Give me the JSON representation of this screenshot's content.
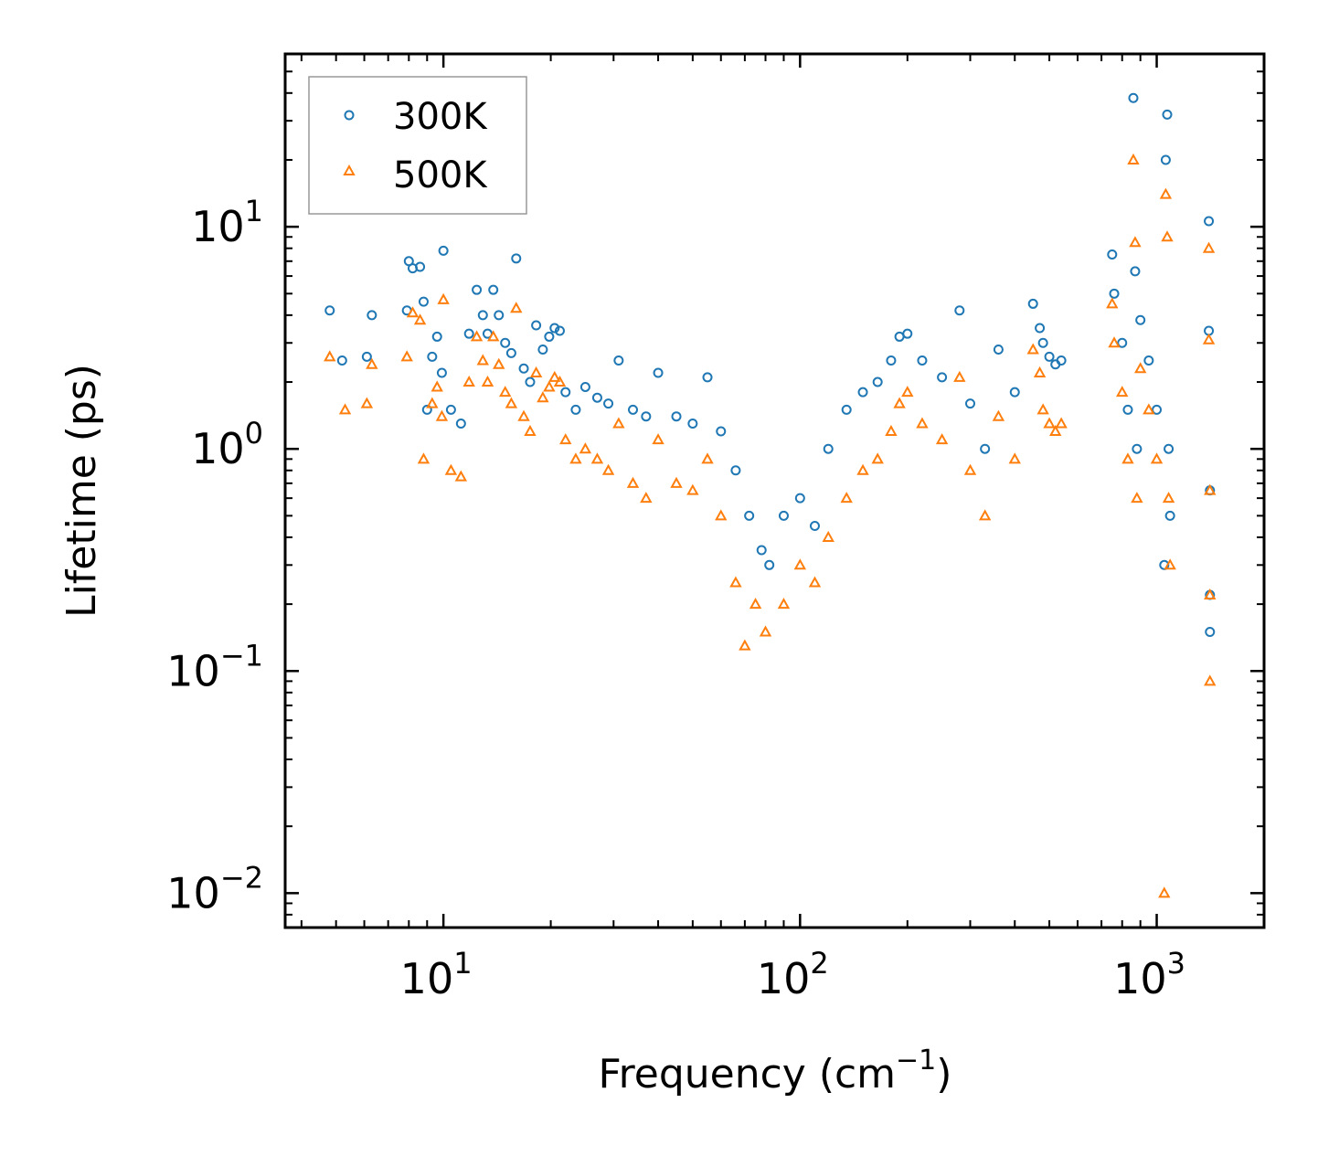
{
  "chart_data": {
    "type": "scatter",
    "title": "",
    "xlabel_base": "Frequency (cm",
    "xlabel_exp": "−1",
    "xlabel_end": ")",
    "ylabel": "Lifetime (ps)",
    "xscale": "log",
    "yscale": "log",
    "xlim": [
      3.6,
      2000
    ],
    "ylim": [
      0.007,
      60
    ],
    "x_ticks": [
      {
        "value": 10,
        "base": "10",
        "exp": "1"
      },
      {
        "value": 100,
        "base": "10",
        "exp": "2"
      },
      {
        "value": 1000,
        "base": "10",
        "exp": "3"
      }
    ],
    "y_ticks": [
      {
        "value": 0.01,
        "base": "10",
        "exp": "−2"
      },
      {
        "value": 0.1,
        "base": "10",
        "exp": "−1"
      },
      {
        "value": 1,
        "base": "10",
        "exp": "0"
      },
      {
        "value": 10,
        "base": "10",
        "exp": "1"
      }
    ],
    "legend_position": "top-left",
    "series": [
      {
        "name": "300K",
        "marker": "circle",
        "color": "#1f77b4",
        "points": [
          [
            4.8,
            4.2
          ],
          [
            5.2,
            2.5
          ],
          [
            6.1,
            2.6
          ],
          [
            6.3,
            4.0
          ],
          [
            7.9,
            4.2
          ],
          [
            8.0,
            7.0
          ],
          [
            8.2,
            6.5
          ],
          [
            8.6,
            6.6
          ],
          [
            8.8,
            4.6
          ],
          [
            9.0,
            1.5
          ],
          [
            9.3,
            2.6
          ],
          [
            9.6,
            3.2
          ],
          [
            9.9,
            2.2
          ],
          [
            10.0,
            7.8
          ],
          [
            10.5,
            1.5
          ],
          [
            11.2,
            1.3
          ],
          [
            11.8,
            3.3
          ],
          [
            12.4,
            5.2
          ],
          [
            12.9,
            4.0
          ],
          [
            13.3,
            3.3
          ],
          [
            13.8,
            5.2
          ],
          [
            14.3,
            4.0
          ],
          [
            14.9,
            3.0
          ],
          [
            15.5,
            2.7
          ],
          [
            16.0,
            7.2
          ],
          [
            16.8,
            2.3
          ],
          [
            17.5,
            2.0
          ],
          [
            18.2,
            3.6
          ],
          [
            19.0,
            2.8
          ],
          [
            19.8,
            3.2
          ],
          [
            20.5,
            3.5
          ],
          [
            21.2,
            3.4
          ],
          [
            22.0,
            1.8
          ],
          [
            23.5,
            1.5
          ],
          [
            25.0,
            1.9
          ],
          [
            27.0,
            1.7
          ],
          [
            29.0,
            1.6
          ],
          [
            31.0,
            2.5
          ],
          [
            34.0,
            1.5
          ],
          [
            37.0,
            1.4
          ],
          [
            40.0,
            2.2
          ],
          [
            45.0,
            1.4
          ],
          [
            50.0,
            1.3
          ],
          [
            55.0,
            2.1
          ],
          [
            60.0,
            1.2
          ],
          [
            66.0,
            0.8
          ],
          [
            72.0,
            0.5
          ],
          [
            78.0,
            0.35
          ],
          [
            82.0,
            0.3
          ],
          [
            90.0,
            0.5
          ],
          [
            100.0,
            0.6
          ],
          [
            110.0,
            0.45
          ],
          [
            120.0,
            1.0
          ],
          [
            135.0,
            1.5
          ],
          [
            150.0,
            1.8
          ],
          [
            165.0,
            2.0
          ],
          [
            180.0,
            2.5
          ],
          [
            190.0,
            3.2
          ],
          [
            200.0,
            3.3
          ],
          [
            220.0,
            2.5
          ],
          [
            250.0,
            2.1
          ],
          [
            280.0,
            4.2
          ],
          [
            300.0,
            1.6
          ],
          [
            330.0,
            1.0
          ],
          [
            360.0,
            2.8
          ],
          [
            400.0,
            1.8
          ],
          [
            450.0,
            4.5
          ],
          [
            470.0,
            3.5
          ],
          [
            480.0,
            3.0
          ],
          [
            500.0,
            2.6
          ],
          [
            520.0,
            2.4
          ],
          [
            540.0,
            2.5
          ],
          [
            750.0,
            7.5
          ],
          [
            760.0,
            5.0
          ],
          [
            800.0,
            3.0
          ],
          [
            830.0,
            1.5
          ],
          [
            860.0,
            38.0
          ],
          [
            870.0,
            6.3
          ],
          [
            880.0,
            1.0
          ],
          [
            900.0,
            3.8
          ],
          [
            950.0,
            2.5
          ],
          [
            1000.0,
            1.5
          ],
          [
            1050.0,
            0.3
          ],
          [
            1060.0,
            20.0
          ],
          [
            1070.0,
            32.0
          ],
          [
            1080.0,
            1.0
          ],
          [
            1090.0,
            0.5
          ],
          [
            1400.0,
            10.6
          ],
          [
            1400.0,
            3.4
          ],
          [
            1410.0,
            0.65
          ],
          [
            1410.0,
            0.22
          ],
          [
            1410.0,
            0.15
          ]
        ]
      },
      {
        "name": "500K",
        "marker": "triangle",
        "color": "#ff7f0e",
        "points": [
          [
            4.8,
            2.6
          ],
          [
            5.3,
            1.5
          ],
          [
            6.1,
            1.6
          ],
          [
            6.3,
            2.4
          ],
          [
            7.9,
            2.6
          ],
          [
            8.2,
            4.1
          ],
          [
            8.6,
            3.8
          ],
          [
            8.8,
            0.9
          ],
          [
            9.3,
            1.6
          ],
          [
            9.6,
            1.9
          ],
          [
            9.9,
            1.4
          ],
          [
            10.0,
            4.7
          ],
          [
            10.5,
            0.8
          ],
          [
            11.2,
            0.75
          ],
          [
            11.8,
            2.0
          ],
          [
            12.4,
            3.2
          ],
          [
            12.9,
            2.5
          ],
          [
            13.3,
            2.0
          ],
          [
            13.8,
            3.2
          ],
          [
            14.3,
            2.4
          ],
          [
            14.9,
            1.8
          ],
          [
            15.5,
            1.6
          ],
          [
            16.0,
            4.3
          ],
          [
            16.8,
            1.4
          ],
          [
            17.5,
            1.2
          ],
          [
            18.2,
            2.2
          ],
          [
            19.0,
            1.7
          ],
          [
            19.8,
            1.9
          ],
          [
            20.5,
            2.1
          ],
          [
            21.2,
            2.0
          ],
          [
            22.0,
            1.1
          ],
          [
            23.5,
            0.9
          ],
          [
            25.0,
            1.0
          ],
          [
            27.0,
            0.9
          ],
          [
            29.0,
            0.8
          ],
          [
            31.0,
            1.3
          ],
          [
            34.0,
            0.7
          ],
          [
            37.0,
            0.6
          ],
          [
            40.0,
            1.1
          ],
          [
            45.0,
            0.7
          ],
          [
            50.0,
            0.65
          ],
          [
            55.0,
            0.9
          ],
          [
            60.0,
            0.5
          ],
          [
            66.0,
            0.25
          ],
          [
            70.0,
            0.13
          ],
          [
            75.0,
            0.2
          ],
          [
            80.0,
            0.15
          ],
          [
            90.0,
            0.2
          ],
          [
            100.0,
            0.3
          ],
          [
            110.0,
            0.25
          ],
          [
            120.0,
            0.4
          ],
          [
            135.0,
            0.6
          ],
          [
            150.0,
            0.8
          ],
          [
            165.0,
            0.9
          ],
          [
            180.0,
            1.2
          ],
          [
            190.0,
            1.6
          ],
          [
            200.0,
            1.8
          ],
          [
            220.0,
            1.3
          ],
          [
            250.0,
            1.1
          ],
          [
            280.0,
            2.1
          ],
          [
            300.0,
            0.8
          ],
          [
            330.0,
            0.5
          ],
          [
            360.0,
            1.4
          ],
          [
            400.0,
            0.9
          ],
          [
            450.0,
            2.8
          ],
          [
            470.0,
            2.2
          ],
          [
            480.0,
            1.5
          ],
          [
            500.0,
            1.3
          ],
          [
            520.0,
            1.2
          ],
          [
            540.0,
            1.3
          ],
          [
            750.0,
            4.5
          ],
          [
            760.0,
            3.0
          ],
          [
            800.0,
            1.8
          ],
          [
            830.0,
            0.9
          ],
          [
            860.0,
            20.0
          ],
          [
            870.0,
            8.5
          ],
          [
            880.0,
            0.6
          ],
          [
            900.0,
            2.3
          ],
          [
            950.0,
            1.5
          ],
          [
            1000.0,
            0.9
          ],
          [
            1050.0,
            0.01
          ],
          [
            1060.0,
            14.0
          ],
          [
            1070.0,
            9.0
          ],
          [
            1080.0,
            0.6
          ],
          [
            1090.0,
            0.3
          ],
          [
            1400.0,
            8.0
          ],
          [
            1400.0,
            3.1
          ],
          [
            1410.0,
            0.65
          ],
          [
            1410.0,
            0.22
          ],
          [
            1410.0,
            0.09
          ]
        ]
      }
    ]
  }
}
